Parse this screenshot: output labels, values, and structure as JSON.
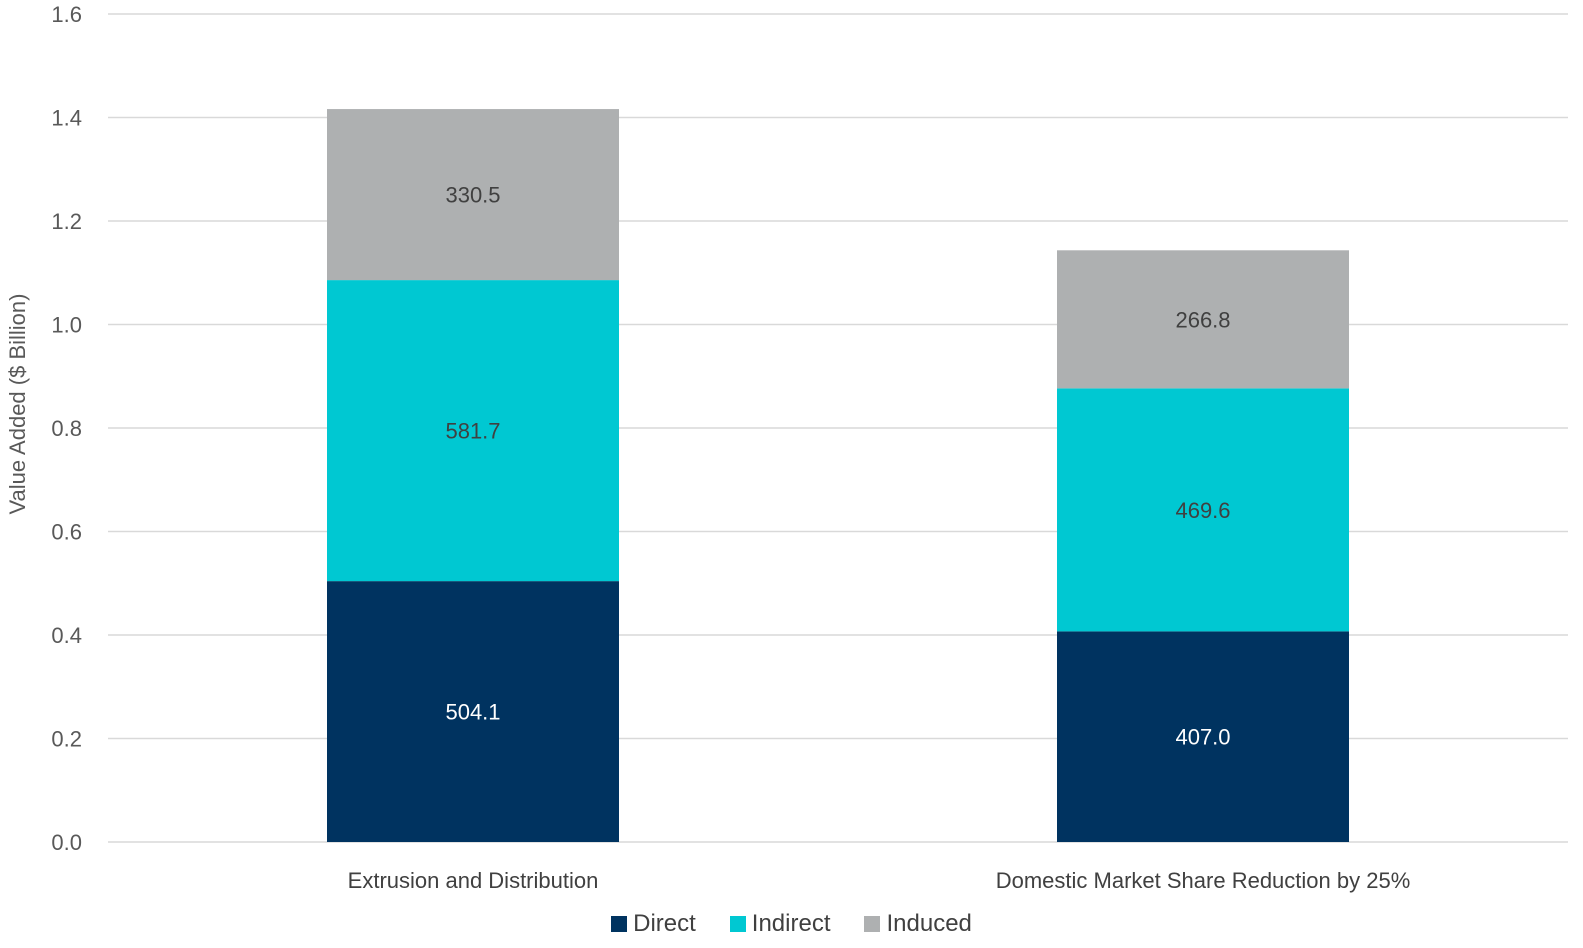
{
  "chart_data": {
    "type": "bar",
    "stacked": true,
    "title": "",
    "xlabel": "",
    "ylabel": "Value Added ($ Billion)",
    "ylim": [
      0,
      1.6
    ],
    "yticks": [
      "0.0",
      "0.2",
      "0.4",
      "0.6",
      "0.8",
      "1.0",
      "1.2",
      "1.4",
      "1.6"
    ],
    "grid": true,
    "legend_position": "bottom",
    "categories": [
      "Extrusion and Distribution",
      "Domestic Market Share Reduction by 25%"
    ],
    "series": [
      {
        "name": "Direct",
        "color": "#003360",
        "label_color": "#ffffff",
        "values": [
          0.5041,
          0.407
        ],
        "labels": [
          "504.1",
          "407.0"
        ]
      },
      {
        "name": "Indirect",
        "color": "#00C8D2",
        "label_color": "#404040",
        "values": [
          0.5817,
          0.4696
        ],
        "labels": [
          "581.7",
          "469.6"
        ]
      },
      {
        "name": "Induced",
        "color": "#AEB0B1",
        "label_color": "#404040",
        "values": [
          0.3305,
          0.2668
        ],
        "labels": [
          "330.5",
          "266.8"
        ]
      }
    ]
  }
}
